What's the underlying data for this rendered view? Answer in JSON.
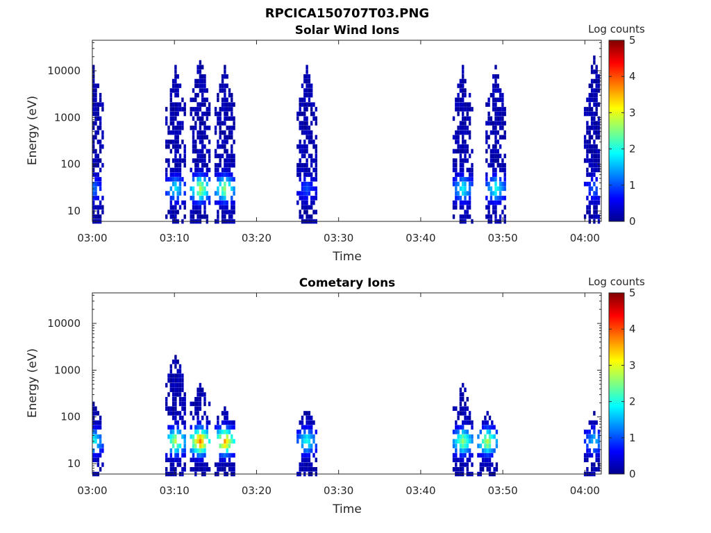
{
  "title": "RPCICA150707T03.PNG",
  "colorbar_scale": [
    "#00008f",
    "#0000ff",
    "#0080ff",
    "#00ffff",
    "#80ff80",
    "#ffff00",
    "#ff8000",
    "#ff0000",
    "#800000"
  ],
  "chart_data": [
    {
      "type": "heatmap",
      "title": "Solar Wind Ions",
      "xlabel": "Time",
      "ylabel": "Energy (eV)",
      "yscale": "log",
      "ylim": [
        6,
        45000
      ],
      "xlim": [
        "03:00",
        "04:02"
      ],
      "xticks": [
        "03:00",
        "03:10",
        "03:20",
        "03:30",
        "03:40",
        "03:50",
        "04:00"
      ],
      "yticks": [
        10,
        100,
        1000,
        10000
      ],
      "ytick_labels": [
        "10",
        "100",
        "1000",
        "10000"
      ],
      "colorbar": {
        "label": "Log counts",
        "min": 0,
        "max": 5,
        "ticks": [
          "0",
          "1",
          "2",
          "3",
          "4",
          "5"
        ]
      },
      "bursts": [
        {
          "time": "03:00",
          "e_low": 6,
          "e_high": 15000,
          "log_counts_peak": 1.2
        },
        {
          "time": "03:10",
          "e_low": 6,
          "e_high": 12000,
          "log_counts_peak": 1.8
        },
        {
          "time": "03:13",
          "e_low": 6,
          "e_high": 20000,
          "log_counts_peak": 2.8
        },
        {
          "time": "03:16",
          "e_low": 6,
          "e_high": 15000,
          "log_counts_peak": 2.6
        },
        {
          "time": "03:26",
          "e_low": 6,
          "e_high": 15000,
          "log_counts_peak": 1.0
        },
        {
          "time": "03:45",
          "e_low": 6,
          "e_high": 15000,
          "log_counts_peak": 1.9
        },
        {
          "time": "03:49",
          "e_low": 6,
          "e_high": 15000,
          "log_counts_peak": 2.0
        },
        {
          "time": "04:01",
          "e_low": 6,
          "e_high": 20000,
          "log_counts_peak": 1.1
        }
      ]
    },
    {
      "type": "heatmap",
      "title": "Cometary Ions",
      "xlabel": "Time",
      "ylabel": "Energy (eV)",
      "yscale": "log",
      "ylim": [
        6,
        45000
      ],
      "xlim": [
        "03:00",
        "04:02"
      ],
      "xticks": [
        "03:00",
        "03:10",
        "03:20",
        "03:30",
        "03:40",
        "03:50",
        "04:00"
      ],
      "yticks": [
        10,
        100,
        1000,
        10000
      ],
      "ytick_labels": [
        "10",
        "100",
        "1000",
        "10000"
      ],
      "colorbar": {
        "label": "Log counts",
        "min": 0,
        "max": 5,
        "ticks": [
          "0",
          "1",
          "2",
          "3",
          "4",
          "5"
        ]
      },
      "bursts": [
        {
          "time": "03:00",
          "e_low": 6,
          "e_high": 200,
          "log_counts_peak": 2.0
        },
        {
          "time": "03:10",
          "e_low": 6,
          "e_high": 2500,
          "log_counts_peak": 2.8
        },
        {
          "time": "03:13",
          "e_low": 6,
          "e_high": 600,
          "log_counts_peak": 3.8
        },
        {
          "time": "03:16",
          "e_low": 6,
          "e_high": 180,
          "log_counts_peak": 3.6
        },
        {
          "time": "03:26",
          "e_low": 6,
          "e_high": 150,
          "log_counts_peak": 2.0
        },
        {
          "time": "03:45",
          "e_low": 6,
          "e_high": 500,
          "log_counts_peak": 2.6
        },
        {
          "time": "03:48",
          "e_low": 6,
          "e_high": 120,
          "log_counts_peak": 2.8
        },
        {
          "time": "04:01",
          "e_low": 6,
          "e_high": 120,
          "log_counts_peak": 1.6
        }
      ]
    }
  ]
}
